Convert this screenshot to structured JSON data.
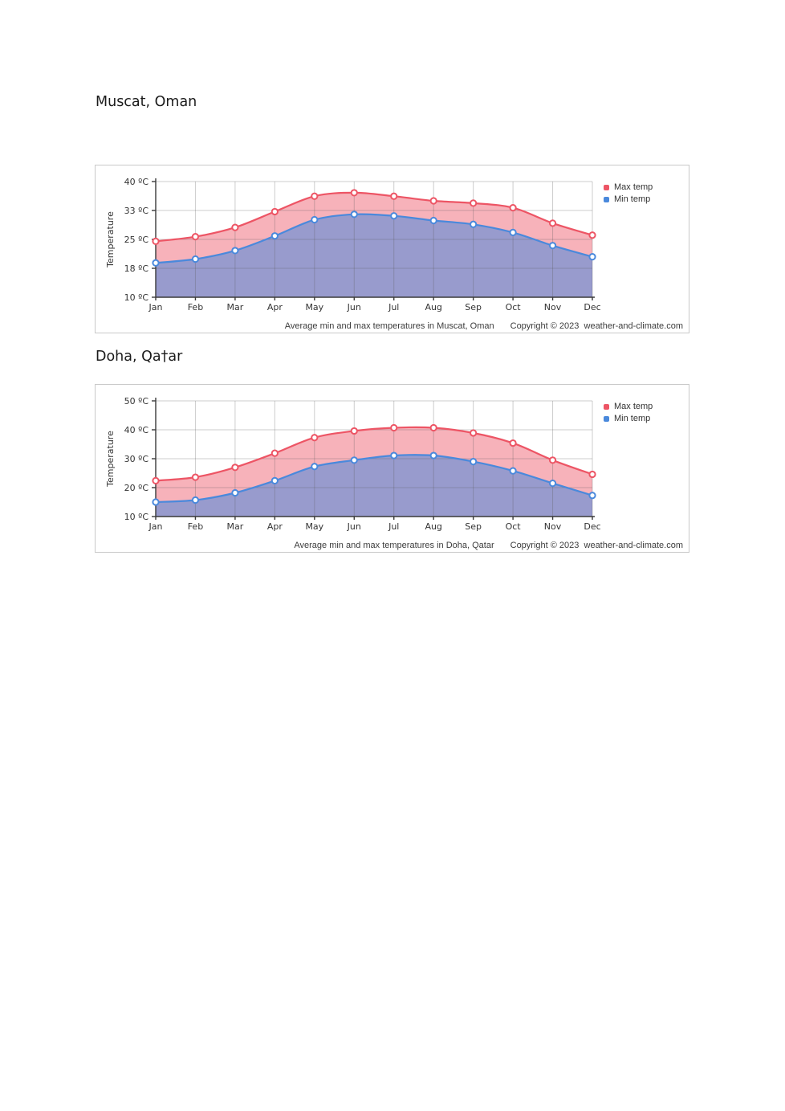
{
  "page": {
    "headings": [
      "Muscat, Oman",
      "Doha, Qa†ar"
    ]
  },
  "legend": {
    "max_label": "Max temp",
    "min_label": "Min temp"
  },
  "colors": {
    "max_temp": "#ED5565",
    "min_temp": "#4A89DC",
    "grid": "#d4d4d4",
    "axis": "#3a3a3a",
    "tick_text": "#333333"
  },
  "chart_data": [
    {
      "type": "area",
      "title": "Muscat, Oman",
      "categories": [
        "Jan",
        "Feb",
        "Mar",
        "Apr",
        "May",
        "Jun",
        "Jul",
        "Aug",
        "Sep",
        "Oct",
        "Nov",
        "Dec"
      ],
      "series": [
        {
          "name": "Max temp",
          "color": "#ED5565",
          "fill_opacity": 0.45,
          "values": [
            24.5,
            25.7,
            28.1,
            32.2,
            36.2,
            37.1,
            36.2,
            35.0,
            34.4,
            33.2,
            29.2,
            26.1
          ]
        },
        {
          "name": "Min temp",
          "color": "#4A89DC",
          "fill_opacity": 0.55,
          "values": [
            18.9,
            19.9,
            22.1,
            25.9,
            30.1,
            31.5,
            31.1,
            29.9,
            28.9,
            26.8,
            23.4,
            20.5
          ]
        }
      ],
      "ylabel": "Temperature",
      "xlabel": "",
      "ylim": [
        10,
        40
      ],
      "ytick_labels": [
        "40 ºC",
        "33 ºC",
        "25 ºC",
        "18 ºC",
        "10 ºC"
      ],
      "grid": true,
      "legend_position": "top-right",
      "caption": "Average min and max temperatures in Muscat, Oman",
      "copyright": "Copyright © 2023  weather-and-climate.com"
    },
    {
      "type": "area",
      "title": "Doha, Qatar",
      "categories": [
        "Jan",
        "Feb",
        "Mar",
        "Apr",
        "May",
        "Jun",
        "Jul",
        "Aug",
        "Sep",
        "Oct",
        "Nov",
        "Dec"
      ],
      "series": [
        {
          "name": "Max temp",
          "color": "#ED5565",
          "fill_opacity": 0.45,
          "values": [
            22.4,
            23.6,
            27.0,
            31.9,
            37.3,
            39.6,
            40.7,
            40.7,
            38.9,
            35.4,
            29.5,
            24.6
          ]
        },
        {
          "name": "Min temp",
          "color": "#4A89DC",
          "fill_opacity": 0.55,
          "values": [
            15.0,
            15.7,
            18.2,
            22.4,
            27.3,
            29.5,
            31.1,
            31.1,
            29.0,
            25.8,
            21.5,
            17.3
          ]
        }
      ],
      "ylabel": "Temperature",
      "xlabel": "",
      "ylim": [
        10,
        50
      ],
      "ytick_labels": [
        "50 ºC",
        "40 ºC",
        "30 ºC",
        "20 ºC",
        "10 ºC"
      ],
      "grid": true,
      "legend_position": "top-right",
      "caption": "Average min and max temperatures in Doha, Qatar",
      "copyright": "Copyright © 2023  weather-and-climate.com"
    }
  ]
}
